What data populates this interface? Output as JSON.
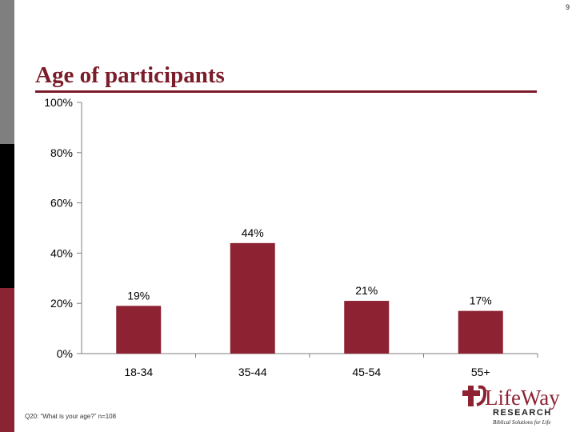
{
  "page_number": "9",
  "title": "Age of participants",
  "footnote": "Q20: “What is your age?” n=108",
  "logo": {
    "brand": "LifeWay",
    "sub": "RESEARCH",
    "tagline": "Biblical Solutions for Life"
  },
  "colors": {
    "bar": "#8c2232",
    "title": "#7b1c2a",
    "axis": "#7f7f7f"
  },
  "chart_data": {
    "type": "bar",
    "title": "",
    "xlabel": "",
    "ylabel": "",
    "categories": [
      "18-34",
      "35-44",
      "45-54",
      "55+"
    ],
    "values": [
      19,
      44,
      21,
      17
    ],
    "value_labels": [
      "19%",
      "44%",
      "21%",
      "17%"
    ],
    "ylim": [
      0,
      100
    ],
    "yticks": [
      0,
      20,
      40,
      60,
      80,
      100
    ],
    "ytick_labels": [
      "0%",
      "20%",
      "40%",
      "60%",
      "80%",
      "100%"
    ],
    "grid": false,
    "legend": "none"
  }
}
